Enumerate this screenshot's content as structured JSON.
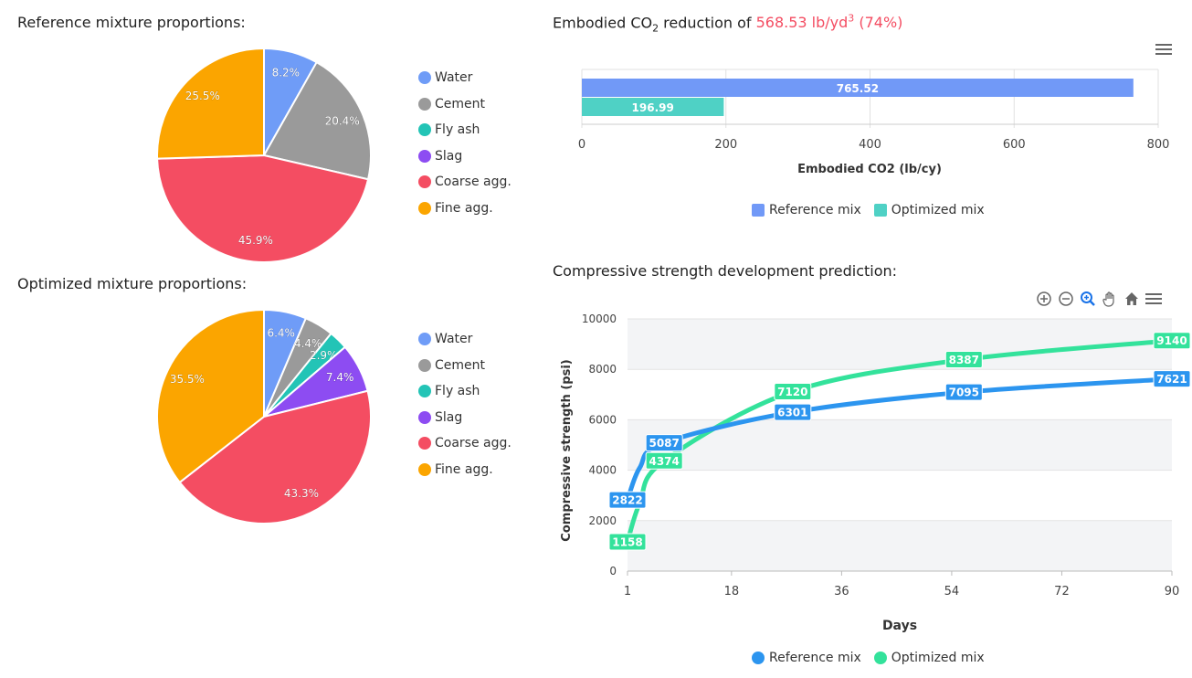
{
  "left": {
    "reference_title": "Reference mixture proportions:",
    "optimized_title": "Optimized mixture proportions:",
    "legend": [
      "Water",
      "Cement",
      "Fly ash",
      "Slag",
      "Coarse agg.",
      "Fine agg."
    ],
    "colors": [
      "#6f9cf7",
      "#9a9a9a",
      "#23c4b6",
      "#8d4cf2",
      "#f44d62",
      "#fba500"
    ]
  },
  "co2": {
    "title_prefix": "Embodied CO",
    "title_sub": "2",
    "title_mid": " reduction of ",
    "title_value": "568.53 lb/yd",
    "title_sup": "3",
    "title_pct": " (74%)",
    "highlight_color": "#f44d62"
  },
  "strength": {
    "title": "Compressive strength development prediction:"
  },
  "chart_data": [
    {
      "type": "pie",
      "title": "Reference mixture proportions:",
      "categories": [
        "Water",
        "Cement",
        "Fly ash",
        "Slag",
        "Coarse agg.",
        "Fine agg."
      ],
      "values": [
        8.2,
        20.4,
        0,
        0,
        45.9,
        25.5
      ],
      "labels": [
        "8.2%",
        "20.4%",
        "",
        "",
        "45.9%",
        "25.5%"
      ]
    },
    {
      "type": "pie",
      "title": "Optimized mixture proportions:",
      "categories": [
        "Water",
        "Cement",
        "Fly ash",
        "Slag",
        "Coarse agg.",
        "Fine agg."
      ],
      "values": [
        6.4,
        4.4,
        2.9,
        7.4,
        43.3,
        35.5
      ],
      "labels": [
        "6.4%",
        "4.4%",
        "2.9%",
        "7.4%",
        "43.3%",
        "35.5%"
      ]
    },
    {
      "type": "bar",
      "orientation": "horizontal",
      "xlabel": "Embodied CO2 (lb/cy)",
      "xlim": [
        0,
        800
      ],
      "xticks": [
        0,
        200,
        400,
        600,
        800
      ],
      "series": [
        {
          "name": "Reference mix",
          "values": [
            765.52
          ],
          "label": "765.52",
          "color": "#7199f7"
        },
        {
          "name": "Optimized mix",
          "values": [
            196.99
          ],
          "label": "196.99",
          "color": "#4fd1c5"
        }
      ],
      "legend": "bottom"
    },
    {
      "type": "line",
      "xlabel": "Days",
      "ylabel": "Compressive strength (psi)",
      "xlim": [
        1,
        90
      ],
      "ylim": [
        0,
        10000
      ],
      "xticks": [
        1,
        18,
        36,
        54,
        72,
        90
      ],
      "yticks": [
        0,
        2000,
        4000,
        6000,
        8000,
        10000
      ],
      "series": [
        {
          "name": "Reference mix",
          "color": "#2c95ef",
          "x": [
            1,
            3,
            7,
            28,
            56,
            90
          ],
          "y": [
            2822,
            4100,
            5087,
            6301,
            7095,
            7621
          ],
          "labels": [
            "2822",
            "",
            "5087",
            "6301",
            "7095",
            "7621"
          ]
        },
        {
          "name": "Optimized mix",
          "color": "#33e29b",
          "x": [
            1,
            3,
            7,
            28,
            56,
            90
          ],
          "y": [
            1158,
            2700,
            4374,
            7120,
            8387,
            9140
          ],
          "labels": [
            "1158",
            "",
            "4374",
            "7120",
            "8387",
            "9140"
          ]
        }
      ],
      "legend": "bottom"
    }
  ]
}
